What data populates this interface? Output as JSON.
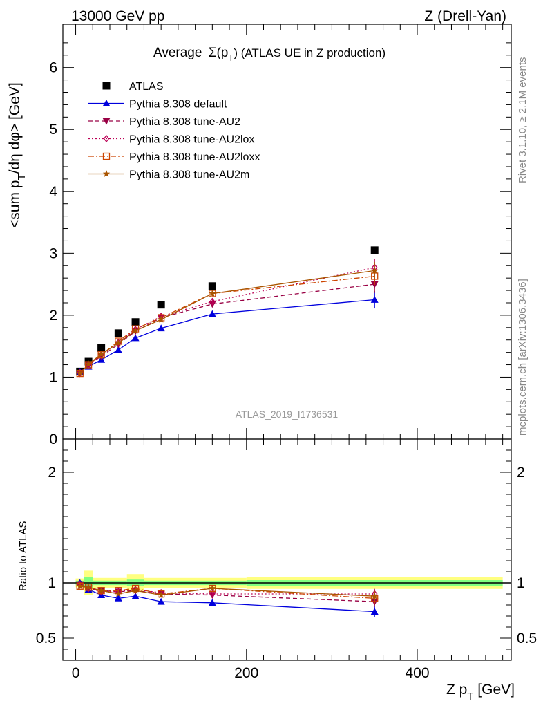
{
  "header": {
    "left": "13000 GeV pp",
    "right": "Z (Drell-Yan)"
  },
  "title": {
    "prefix": "Average",
    "sigma": "Σ(p",
    "sub": "T",
    "suffix": ") (ATLAS UE in Z production)"
  },
  "side_labels": {
    "rivet": "Rivet 3.1.10, ≥ 2.1M events",
    "mcplots": "mcplots.cern.ch [arXiv:1306.3436]"
  },
  "watermark": "ATLAS_2019_I1736531",
  "axis_text": {
    "ylabel_main_a": "<sum p",
    "ylabel_main_sub": "T",
    "ylabel_main_b": "/dη dφ> [GeV]",
    "ylabel_ratio": "Ratio to ATLAS",
    "xlabel_a": "Z p",
    "xlabel_sub": "T",
    "xlabel_b": " [GeV]"
  },
  "chart_data": {
    "type": "line",
    "x": [
      5,
      15,
      30,
      50,
      70,
      100,
      160,
      350
    ],
    "xlim": [
      -15,
      510
    ],
    "x_ticks": [
      0,
      200,
      400
    ],
    "main": {
      "ylim": [
        0,
        6.7
      ],
      "y_ticks": [
        0,
        1,
        2,
        3,
        4,
        5,
        6
      ]
    },
    "ratio": {
      "ylim": [
        0.3,
        2.3
      ],
      "y_ticks": [
        0.5,
        1,
        2
      ],
      "reference_line": 1
    },
    "band": {
      "edges": [
        0,
        10,
        20,
        40,
        60,
        80,
        120,
        200,
        500
      ],
      "stat_half": [
        0.02,
        0.05,
        0.02,
        0.02,
        0.03,
        0.02,
        0.02,
        0.025
      ],
      "total_half": [
        0.04,
        0.11,
        0.045,
        0.045,
        0.08,
        0.045,
        0.045,
        0.055
      ],
      "stat_color": "#80ff80",
      "total_color": "#ffff80"
    },
    "series": [
      {
        "name": "ATLAS",
        "color": "#000000",
        "marker": "square",
        "line": "none",
        "values": [
          1.09,
          1.25,
          1.47,
          1.71,
          1.89,
          2.17,
          2.47,
          3.05
        ],
        "ratio": [
          1.0,
          1.0,
          1.0,
          1.0,
          1.0,
          1.0,
          1.0,
          1.0
        ]
      },
      {
        "name": "Pythia 8.308 default",
        "color": "#0000dd",
        "marker": "triangle-up",
        "line": "solid",
        "values": [
          1.09,
          1.17,
          1.28,
          1.44,
          1.63,
          1.79,
          2.02,
          2.25
        ],
        "ratio": [
          1.0,
          0.94,
          0.89,
          0.86,
          0.88,
          0.83,
          0.82,
          0.74
        ],
        "err": [
          0.02,
          0.02,
          0.02,
          0.02,
          0.03,
          0.03,
          0.04,
          0.14
        ]
      },
      {
        "name": "Pythia 8.308 tune-AU2",
        "color": "#990044",
        "marker": "triangle-down",
        "line": "dashed",
        "values": [
          1.06,
          1.19,
          1.34,
          1.53,
          1.74,
          1.96,
          2.18,
          2.5
        ],
        "ratio": [
          0.98,
          0.95,
          0.93,
          0.92,
          0.93,
          0.9,
          0.89,
          0.83
        ],
        "err": [
          0.02,
          0.02,
          0.02,
          0.02,
          0.03,
          0.03,
          0.04,
          0.14
        ]
      },
      {
        "name": "Pythia 8.308 tune-AU2lox",
        "color": "#bb0055",
        "marker": "diamond",
        "line": "dotted",
        "values": [
          1.07,
          1.2,
          1.36,
          1.56,
          1.77,
          1.98,
          2.22,
          2.77
        ],
        "ratio": [
          0.98,
          0.95,
          0.92,
          0.92,
          0.94,
          0.91,
          0.9,
          0.9
        ],
        "err": [
          0.02,
          0.02,
          0.02,
          0.02,
          0.03,
          0.03,
          0.04,
          0.14
        ]
      },
      {
        "name": "Pythia 8.308 tune-AU2loxx",
        "color": "#cc4400",
        "marker": "square-open",
        "line": "dashdot",
        "values": [
          1.06,
          1.2,
          1.36,
          1.58,
          1.78,
          1.96,
          2.35,
          2.63
        ],
        "ratio": [
          0.97,
          0.96,
          0.93,
          0.93,
          0.95,
          0.9,
          0.95,
          0.86
        ],
        "err": [
          0.02,
          0.02,
          0.02,
          0.02,
          0.03,
          0.03,
          0.04,
          0.14
        ]
      },
      {
        "name": "Pythia 8.308 tune-AU2m",
        "color": "#aa5500",
        "marker": "star",
        "line": "solid",
        "values": [
          1.06,
          1.21,
          1.37,
          1.55,
          1.75,
          1.93,
          2.35,
          2.72
        ],
        "ratio": [
          0.97,
          0.96,
          0.93,
          0.9,
          0.93,
          0.89,
          0.95,
          0.88
        ],
        "err": [
          0.02,
          0.02,
          0.02,
          0.02,
          0.03,
          0.03,
          0.04,
          0.14
        ]
      }
    ],
    "legend_position": "top-left"
  }
}
